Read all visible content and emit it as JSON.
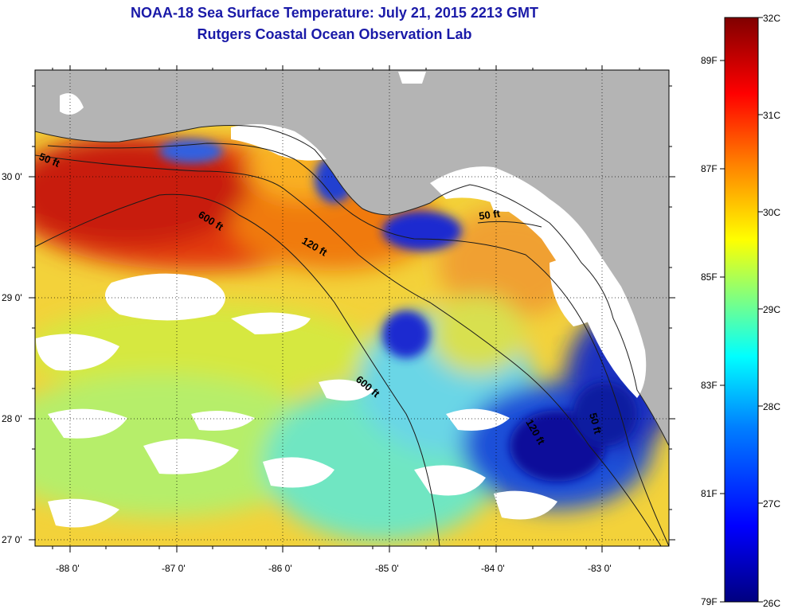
{
  "title": "NOAA-18 Sea Surface Temperature:  July 21, 2015 2213 GMT",
  "subtitle": "Rutgers Coastal Ocean Observation Lab",
  "axes": {
    "lat_ticks": [
      "30 0'",
      "29 0'",
      "28 0'",
      "27 0'"
    ],
    "lon_ticks": [
      "-88 0'",
      "-87 0'",
      "-86 0'",
      "-85 0'",
      "-84 0'",
      "-83 0'"
    ]
  },
  "contours": [
    "50 ft",
    "600 ft",
    "120 ft",
    "600 ft",
    "50 ft",
    "120 ft",
    "50 ft"
  ],
  "colorbar": {
    "celsius": [
      "32C",
      "31C",
      "30C",
      "29C",
      "28C",
      "27C",
      "26C"
    ],
    "fahrenheit": [
      "89F",
      "87F",
      "85F",
      "83F",
      "81F",
      "79F"
    ],
    "colors": [
      "#000080",
      "#0000ff",
      "#0080ff",
      "#00ffff",
      "#80ff80",
      "#ffff00",
      "#ff8000",
      "#ff0000",
      "#800000"
    ]
  },
  "colors": {
    "land": "#b4b4b4",
    "cloud": "#ffffff",
    "title": "#1a1aa8"
  }
}
